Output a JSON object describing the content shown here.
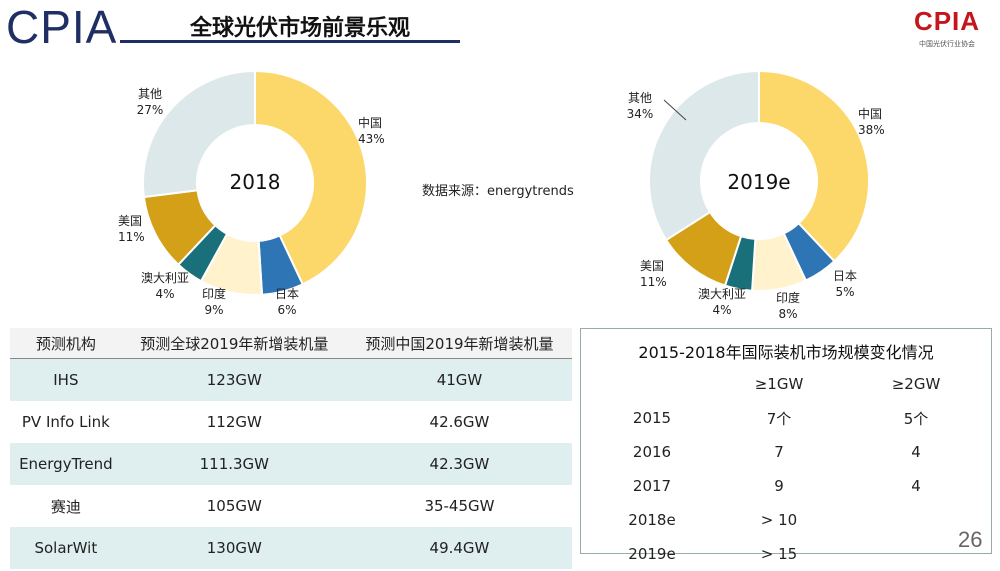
{
  "header": {
    "logo": "CPIA",
    "title": "全球光伏市场前景乐观",
    "badge": "CPIA",
    "badge_sub": "中国光伏行业协会"
  },
  "donut_2018": {
    "center": "2018",
    "segments": [
      {
        "name": "中国",
        "pct": "43%",
        "value": 43,
        "color": "#fcd76a"
      },
      {
        "name": "日本",
        "pct": "6%",
        "value": 6,
        "color": "#2e75b6"
      },
      {
        "name": "印度",
        "pct": "9%",
        "value": 9,
        "color": "#fff2cc"
      },
      {
        "name": "澳大利亚",
        "pct": "4%",
        "value": 4,
        "color": "#19707a"
      },
      {
        "name": "美国",
        "pct": "11%",
        "value": 11,
        "color": "#d4a017"
      },
      {
        "name": "其他",
        "pct": "27%",
        "value": 27,
        "color": "#dde8ea"
      }
    ]
  },
  "donut_2019": {
    "center": "2019e",
    "segments": [
      {
        "name": "中国",
        "pct": "38%",
        "value": 38,
        "color": "#fcd76a"
      },
      {
        "name": "日本",
        "pct": "5%",
        "value": 5,
        "color": "#2e75b6"
      },
      {
        "name": "印度",
        "pct": "8%",
        "value": 8,
        "color": "#fff2cc"
      },
      {
        "name": "澳大利亚",
        "pct": "4%",
        "value": 4,
        "color": "#19707a"
      },
      {
        "name": "美国",
        "pct": "11%",
        "value": 11,
        "color": "#d4a017"
      },
      {
        "name": "其他",
        "pct": "34%",
        "value": 34,
        "color": "#dde8ea"
      }
    ]
  },
  "source": "数据来源：energytrends",
  "prediction_table": {
    "headers": [
      "预测机构",
      "预测全球2019年新增装机量",
      "预测中国2019年新增装机量"
    ],
    "rows": [
      [
        "IHS",
        "123GW",
        "41GW"
      ],
      [
        "PV Info Link",
        "112GW",
        "42.6GW"
      ],
      [
        "EnergyTrend",
        "111.3GW",
        "42.3GW"
      ],
      [
        "赛迪",
        "105GW",
        "35-45GW"
      ],
      [
        "SolarWit",
        "130GW",
        "49.4GW"
      ]
    ]
  },
  "trend_table": {
    "title": "2015-2018年国际装机市场规模变化情况",
    "headers": [
      "",
      "≥1GW",
      "≥2GW"
    ],
    "rows": [
      [
        "2015",
        "7个",
        "5个"
      ],
      [
        "2016",
        "7",
        "4"
      ],
      [
        "2017",
        "9",
        "4"
      ],
      [
        "2018e",
        "> 10",
        ""
      ],
      [
        "2019e",
        "> 15",
        ""
      ]
    ]
  },
  "page_number": "26"
}
